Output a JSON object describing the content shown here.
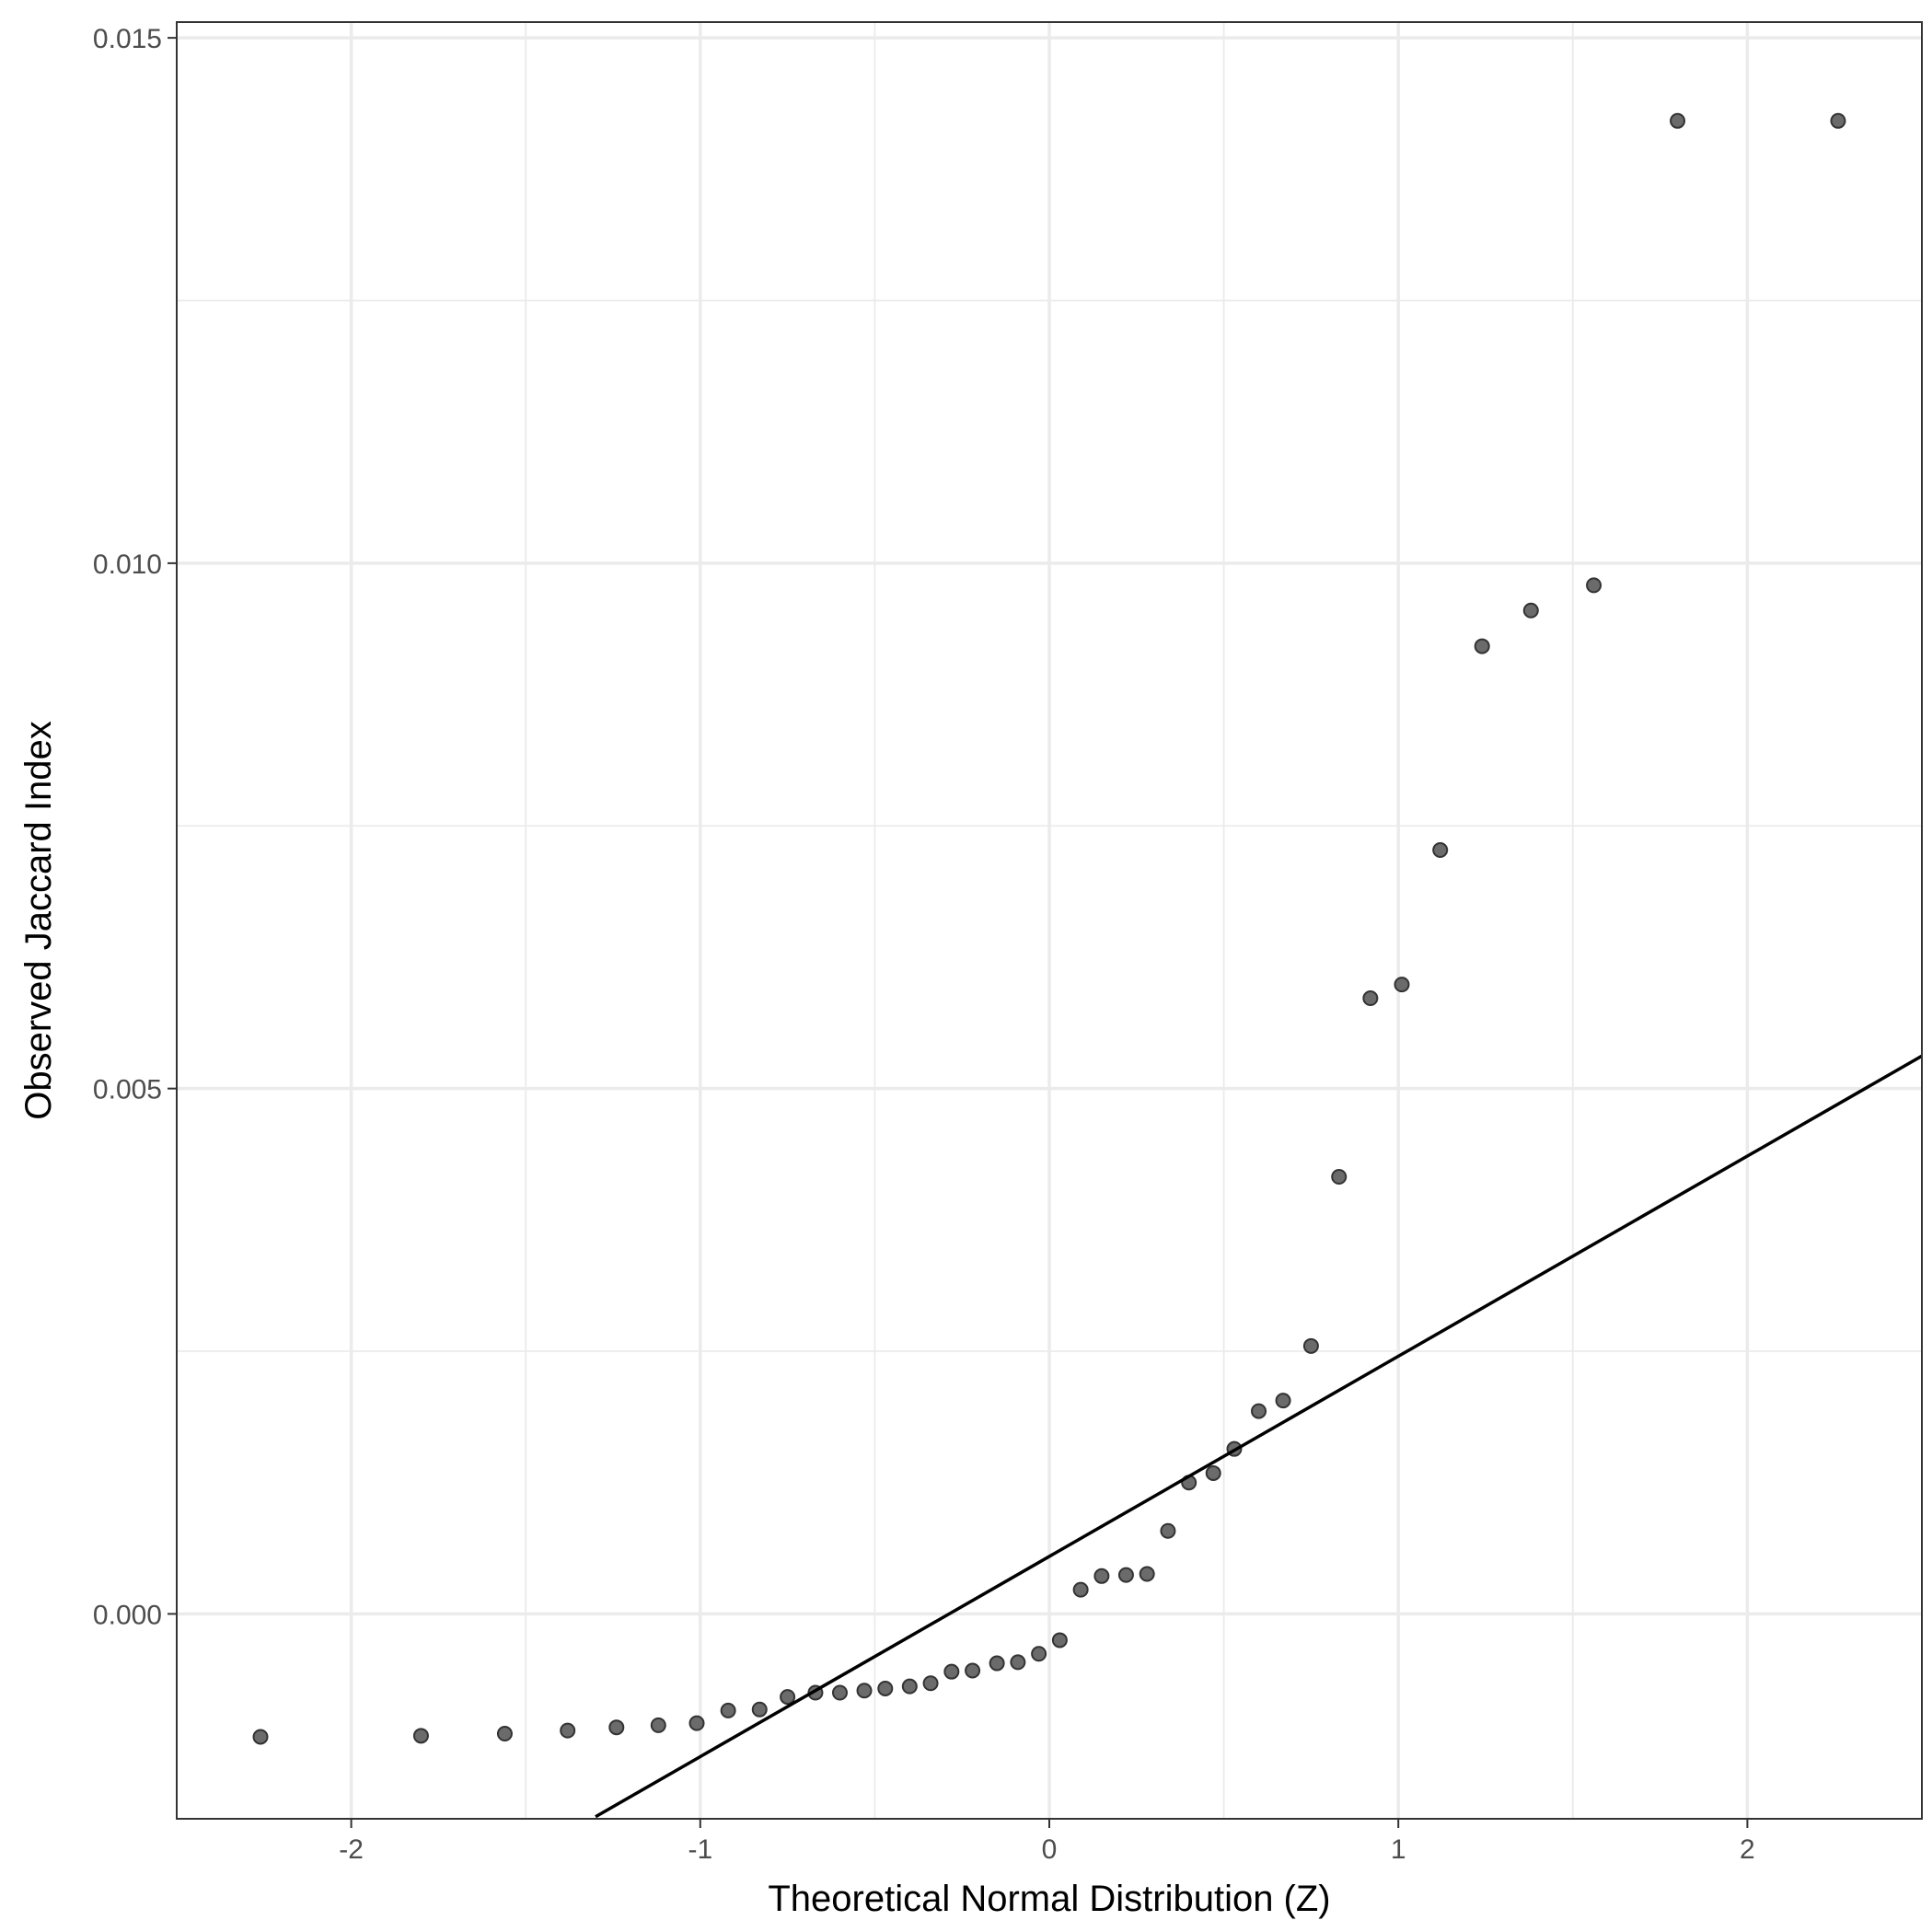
{
  "chart_data": {
    "type": "scatter",
    "xlabel": "Theoretical Normal Distribution (Z)",
    "ylabel": "Observed Jaccard Index",
    "xlim": [
      -2.5,
      2.5
    ],
    "ylim": [
      -0.00195,
      0.01515
    ],
    "x_ticks": [
      -2,
      -1,
      0,
      1,
      2
    ],
    "x_tick_labels": [
      "-2",
      "-1",
      "0",
      "1",
      "2"
    ],
    "y_ticks": [
      0.0,
      0.005,
      0.01,
      0.015
    ],
    "y_tick_labels": [
      "0.000",
      "0.005",
      "0.010",
      "0.015"
    ],
    "grid": true,
    "series": [
      {
        "type": "points",
        "x": [
          -2.26,
          -1.8,
          -1.56,
          -1.38,
          -1.24,
          -1.12,
          -1.01,
          -0.92,
          -0.83,
          -0.75,
          -0.67,
          -0.6,
          -0.53,
          -0.47,
          -0.4,
          -0.34,
          -0.28,
          -0.22,
          -0.15,
          -0.09,
          -0.03,
          0.03,
          0.09,
          0.15,
          0.22,
          0.28,
          0.34,
          0.4,
          0.47,
          0.53,
          0.6,
          0.67,
          0.75,
          0.83,
          0.92,
          1.01,
          1.12,
          1.24,
          1.38,
          1.56,
          1.8,
          2.26
        ],
        "y": [
          -0.00117,
          -0.00116,
          -0.00114,
          -0.00111,
          -0.00108,
          -0.00106,
          -0.00104,
          -0.00092,
          -0.00091,
          -0.00079,
          -0.00075,
          -0.00075,
          -0.00073,
          -0.00071,
          -0.00069,
          -0.00066,
          -0.00055,
          -0.00054,
          -0.00047,
          -0.00046,
          -0.00038,
          -0.00025,
          0.00023,
          0.00036,
          0.00037,
          0.00038,
          0.00079,
          0.00125,
          0.00134,
          0.00157,
          0.00193,
          0.00203,
          0.00255,
          0.00416,
          0.00586,
          0.00599,
          0.00727,
          0.00921,
          0.00955,
          0.00979,
          0.01421,
          0.01421
        ]
      },
      {
        "type": "qq-line",
        "x": [
          -1.3,
          2.5
        ],
        "y": [
          -0.00193,
          0.00531
        ]
      }
    ]
  }
}
